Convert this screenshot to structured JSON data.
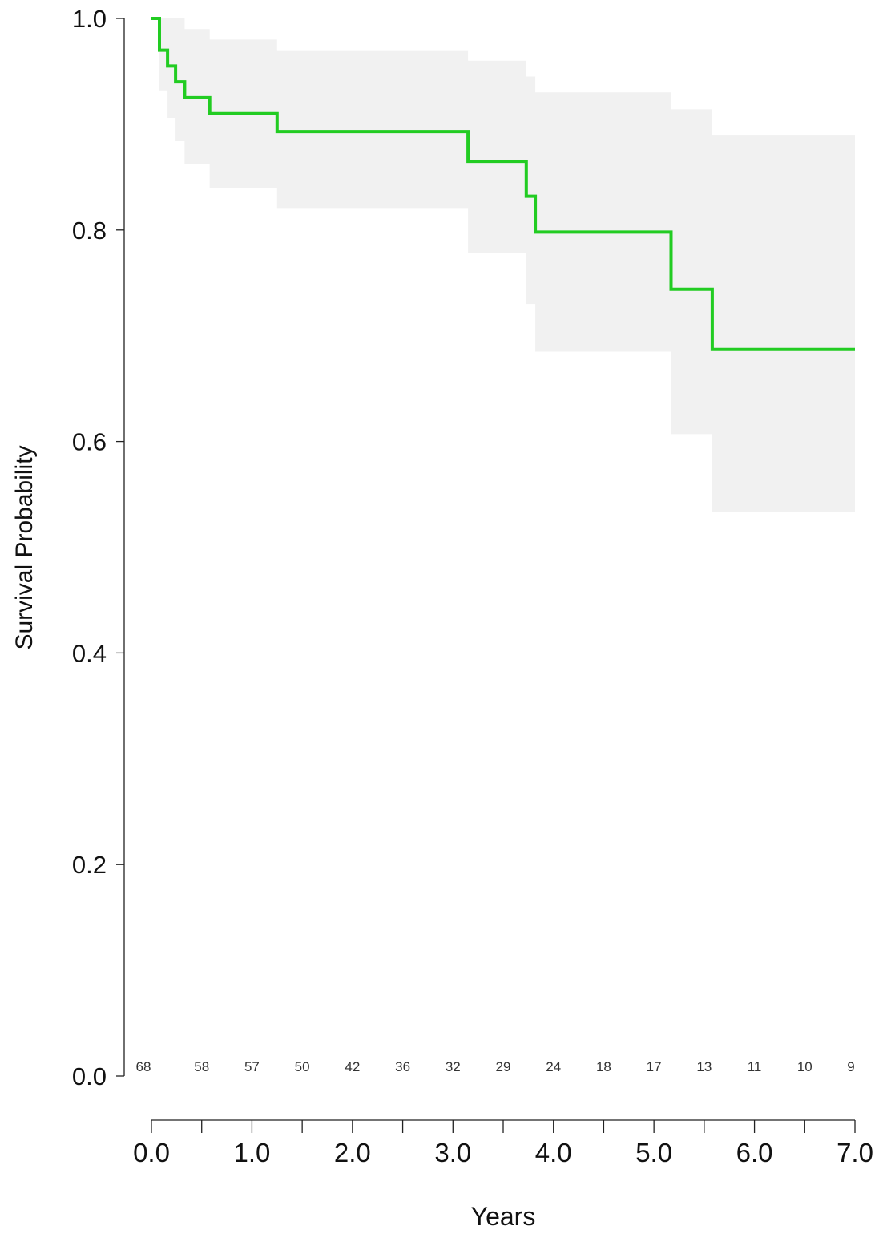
{
  "chart_data": {
    "type": "line",
    "title": "",
    "xlabel": "Years",
    "ylabel": "Survival Probability",
    "xlim": [
      0,
      7
    ],
    "ylim": [
      0,
      1
    ],
    "x_ticks": [
      0,
      0.5,
      1,
      1.5,
      2,
      2.5,
      3,
      3.5,
      4,
      4.5,
      5,
      5.5,
      6,
      6.5,
      7
    ],
    "x_tick_labels": [
      {
        "x": 0,
        "label": "0.0"
      },
      {
        "x": 1,
        "label": "1.0"
      },
      {
        "x": 2,
        "label": "2.0"
      },
      {
        "x": 3,
        "label": "3.0"
      },
      {
        "x": 4,
        "label": "4.0"
      },
      {
        "x": 5,
        "label": "5.0"
      },
      {
        "x": 6,
        "label": "6.0"
      },
      {
        "x": 7,
        "label": "7.0"
      }
    ],
    "y_tick_labels": [
      {
        "y": 0,
        "label": "0.0"
      },
      {
        "y": 0.2,
        "label": "0.2"
      },
      {
        "y": 0.4,
        "label": "0.4"
      },
      {
        "y": 0.6,
        "label": "0.6"
      },
      {
        "y": 0.8,
        "label": "0.8"
      },
      {
        "y": 1.0,
        "label": "1.0"
      }
    ],
    "grid": false,
    "series": [
      {
        "color": "#22cc22",
        "step": true,
        "x": [
          0,
          0.08,
          0.16,
          0.24,
          0.33,
          0.58,
          1.25,
          3.15,
          3.73,
          3.82,
          5.17,
          5.58,
          7.0
        ],
        "y": [
          1.0,
          0.97,
          0.955,
          0.94,
          0.925,
          0.91,
          0.893,
          0.865,
          0.832,
          0.798,
          0.744,
          0.687,
          0.687
        ]
      }
    ],
    "confidence_band": {
      "color": "#f1f1f1",
      "x": [
        0.08,
        0.16,
        0.24,
        0.33,
        0.58,
        1.25,
        3.15,
        3.73,
        3.82,
        5.17,
        5.58,
        7.0
      ],
      "upper": [
        1.0,
        1.0,
        1.0,
        0.99,
        0.98,
        0.97,
        0.96,
        0.945,
        0.93,
        0.914,
        0.89,
        0.89
      ],
      "lower": [
        0.932,
        0.906,
        0.884,
        0.862,
        0.84,
        0.82,
        0.778,
        0.73,
        0.685,
        0.607,
        0.533,
        0.533
      ]
    },
    "number_at_risk": [
      {
        "x": 0,
        "value": "68"
      },
      {
        "x": 0.5,
        "value": "58"
      },
      {
        "x": 1,
        "value": "57"
      },
      {
        "x": 1.5,
        "value": "50"
      },
      {
        "x": 2,
        "value": "42"
      },
      {
        "x": 2.5,
        "value": "36"
      },
      {
        "x": 3,
        "value": "32"
      },
      {
        "x": 3.5,
        "value": "29"
      },
      {
        "x": 4,
        "value": "24"
      },
      {
        "x": 4.5,
        "value": "18"
      },
      {
        "x": 5,
        "value": "17"
      },
      {
        "x": 5.5,
        "value": "13"
      },
      {
        "x": 6,
        "value": "11"
      },
      {
        "x": 6.5,
        "value": "10"
      },
      {
        "x": 7,
        "value": "9"
      }
    ]
  }
}
